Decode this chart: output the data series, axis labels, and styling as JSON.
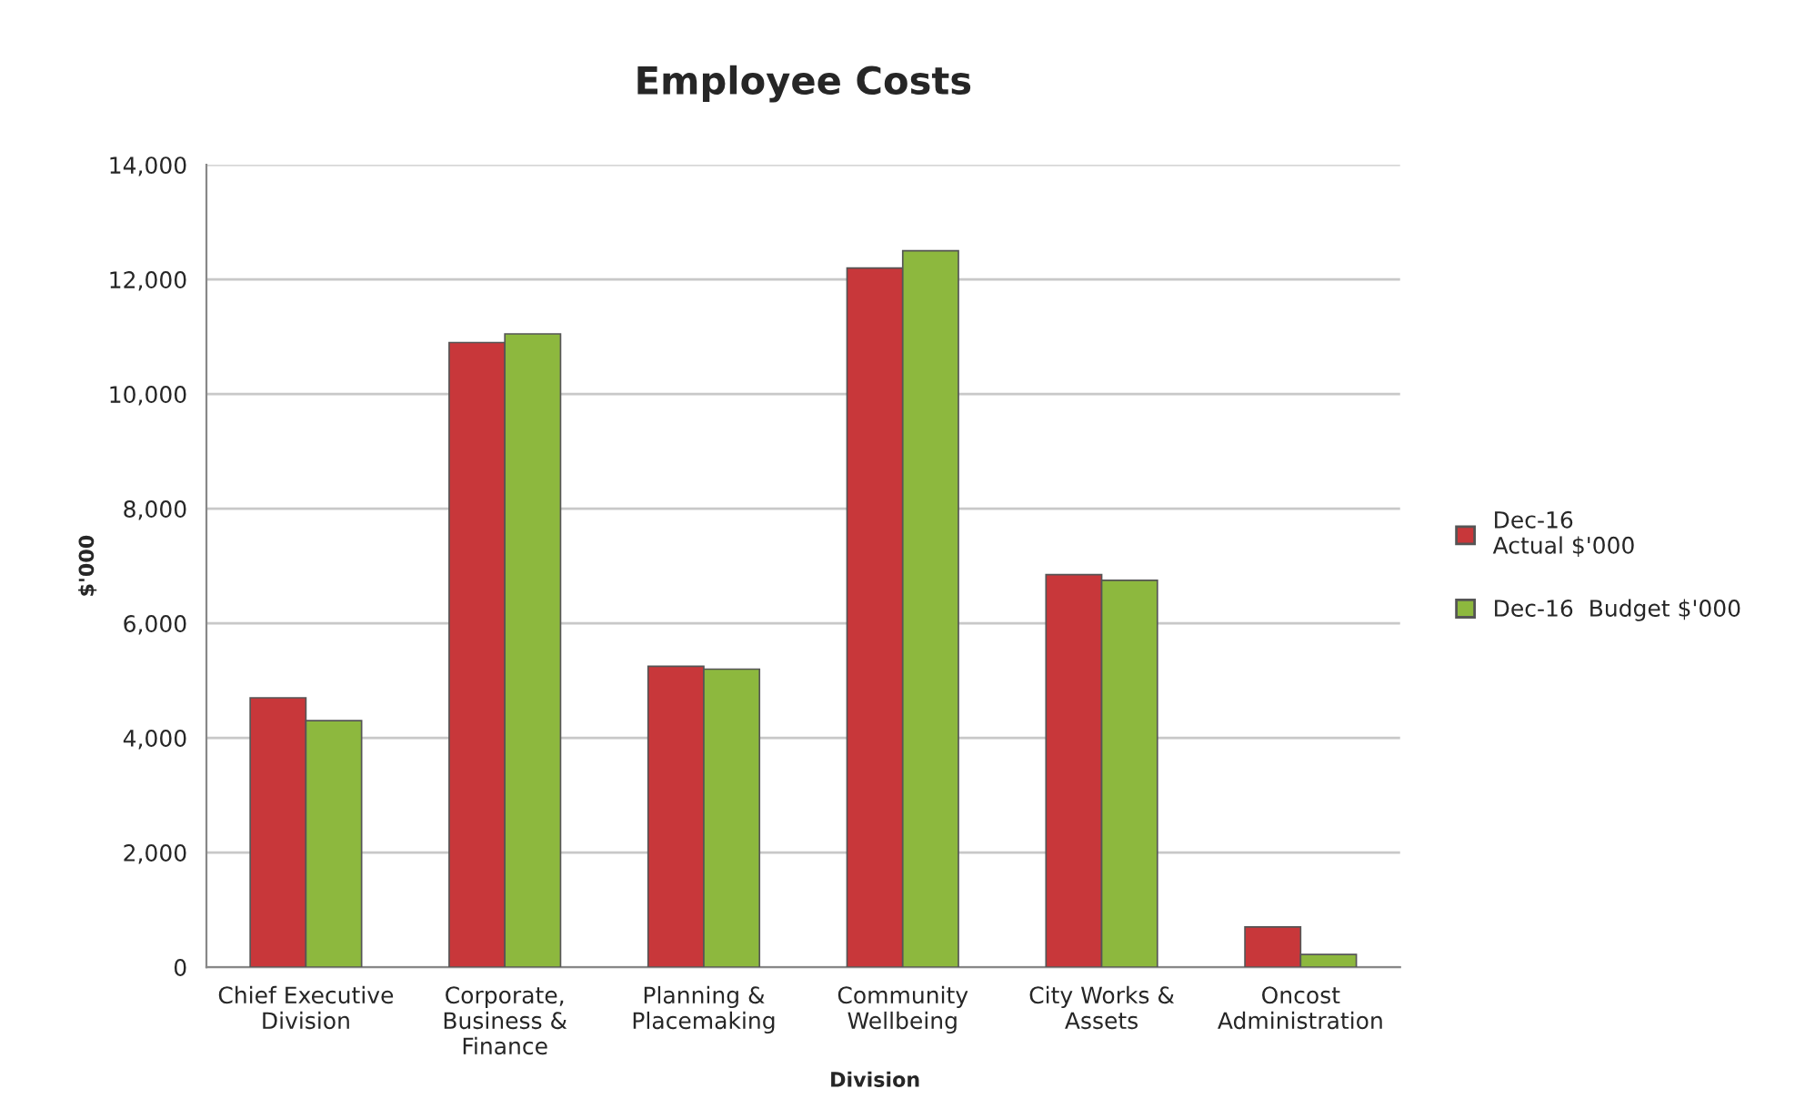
{
  "chart_data": {
    "type": "bar",
    "title": "Employee Costs",
    "xlabel": "Division",
    "ylabel": "$'000",
    "categories": [
      "Chief Executive\nDivision",
      "Corporate,\nBusiness &\nFinance",
      "Planning &\nPlacemaking",
      "Community\nWellbeing",
      "City Works &\nAssets",
      "Oncost\nAdministration"
    ],
    "series": [
      {
        "name": "Dec-16\nActual $'000",
        "color": "#c8373a",
        "values": [
          4700,
          10900,
          5250,
          12200,
          6850,
          700
        ]
      },
      {
        "name": "Dec-16  Budget $'000",
        "color": "#8db83e",
        "values": [
          4300,
          11050,
          5200,
          12500,
          6750,
          220
        ]
      }
    ],
    "ylim": [
      0,
      14000
    ],
    "yticks": [
      {
        "value": 0,
        "label": "0"
      },
      {
        "value": 2000,
        "label": "2,000"
      },
      {
        "value": 4000,
        "label": "4,000"
      },
      {
        "value": 6000,
        "label": "6,000"
      },
      {
        "value": 8000,
        "label": "8,000"
      },
      {
        "value": 10000,
        "label": "10,000"
      },
      {
        "value": 12000,
        "label": "12,000"
      },
      {
        "value": 14000,
        "label": "14,000"
      }
    ],
    "grid": "y",
    "legend": "right"
  }
}
